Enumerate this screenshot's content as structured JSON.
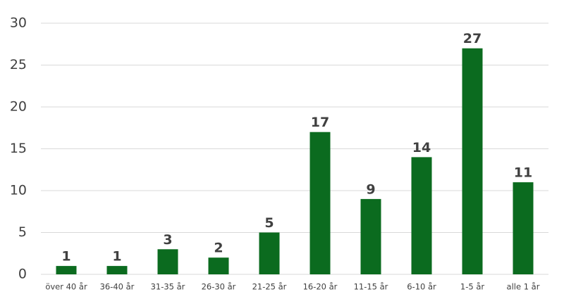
{
  "chart_data": {
    "type": "bar",
    "categories": [
      "över 40 år",
      "36-40 år",
      "31-35 år",
      "26-30 år",
      "21-25 år",
      "16-20 år",
      "11-15 år",
      "6-10 år",
      "1-5 år",
      "alle 1 år"
    ],
    "values": [
      1,
      1,
      3,
      2,
      5,
      17,
      9,
      14,
      27,
      11
    ],
    "color": "#0b6b1f",
    "ylim": [
      0,
      30
    ],
    "yticks": [
      0,
      5,
      10,
      15,
      20,
      25,
      30
    ],
    "grid": true
  }
}
